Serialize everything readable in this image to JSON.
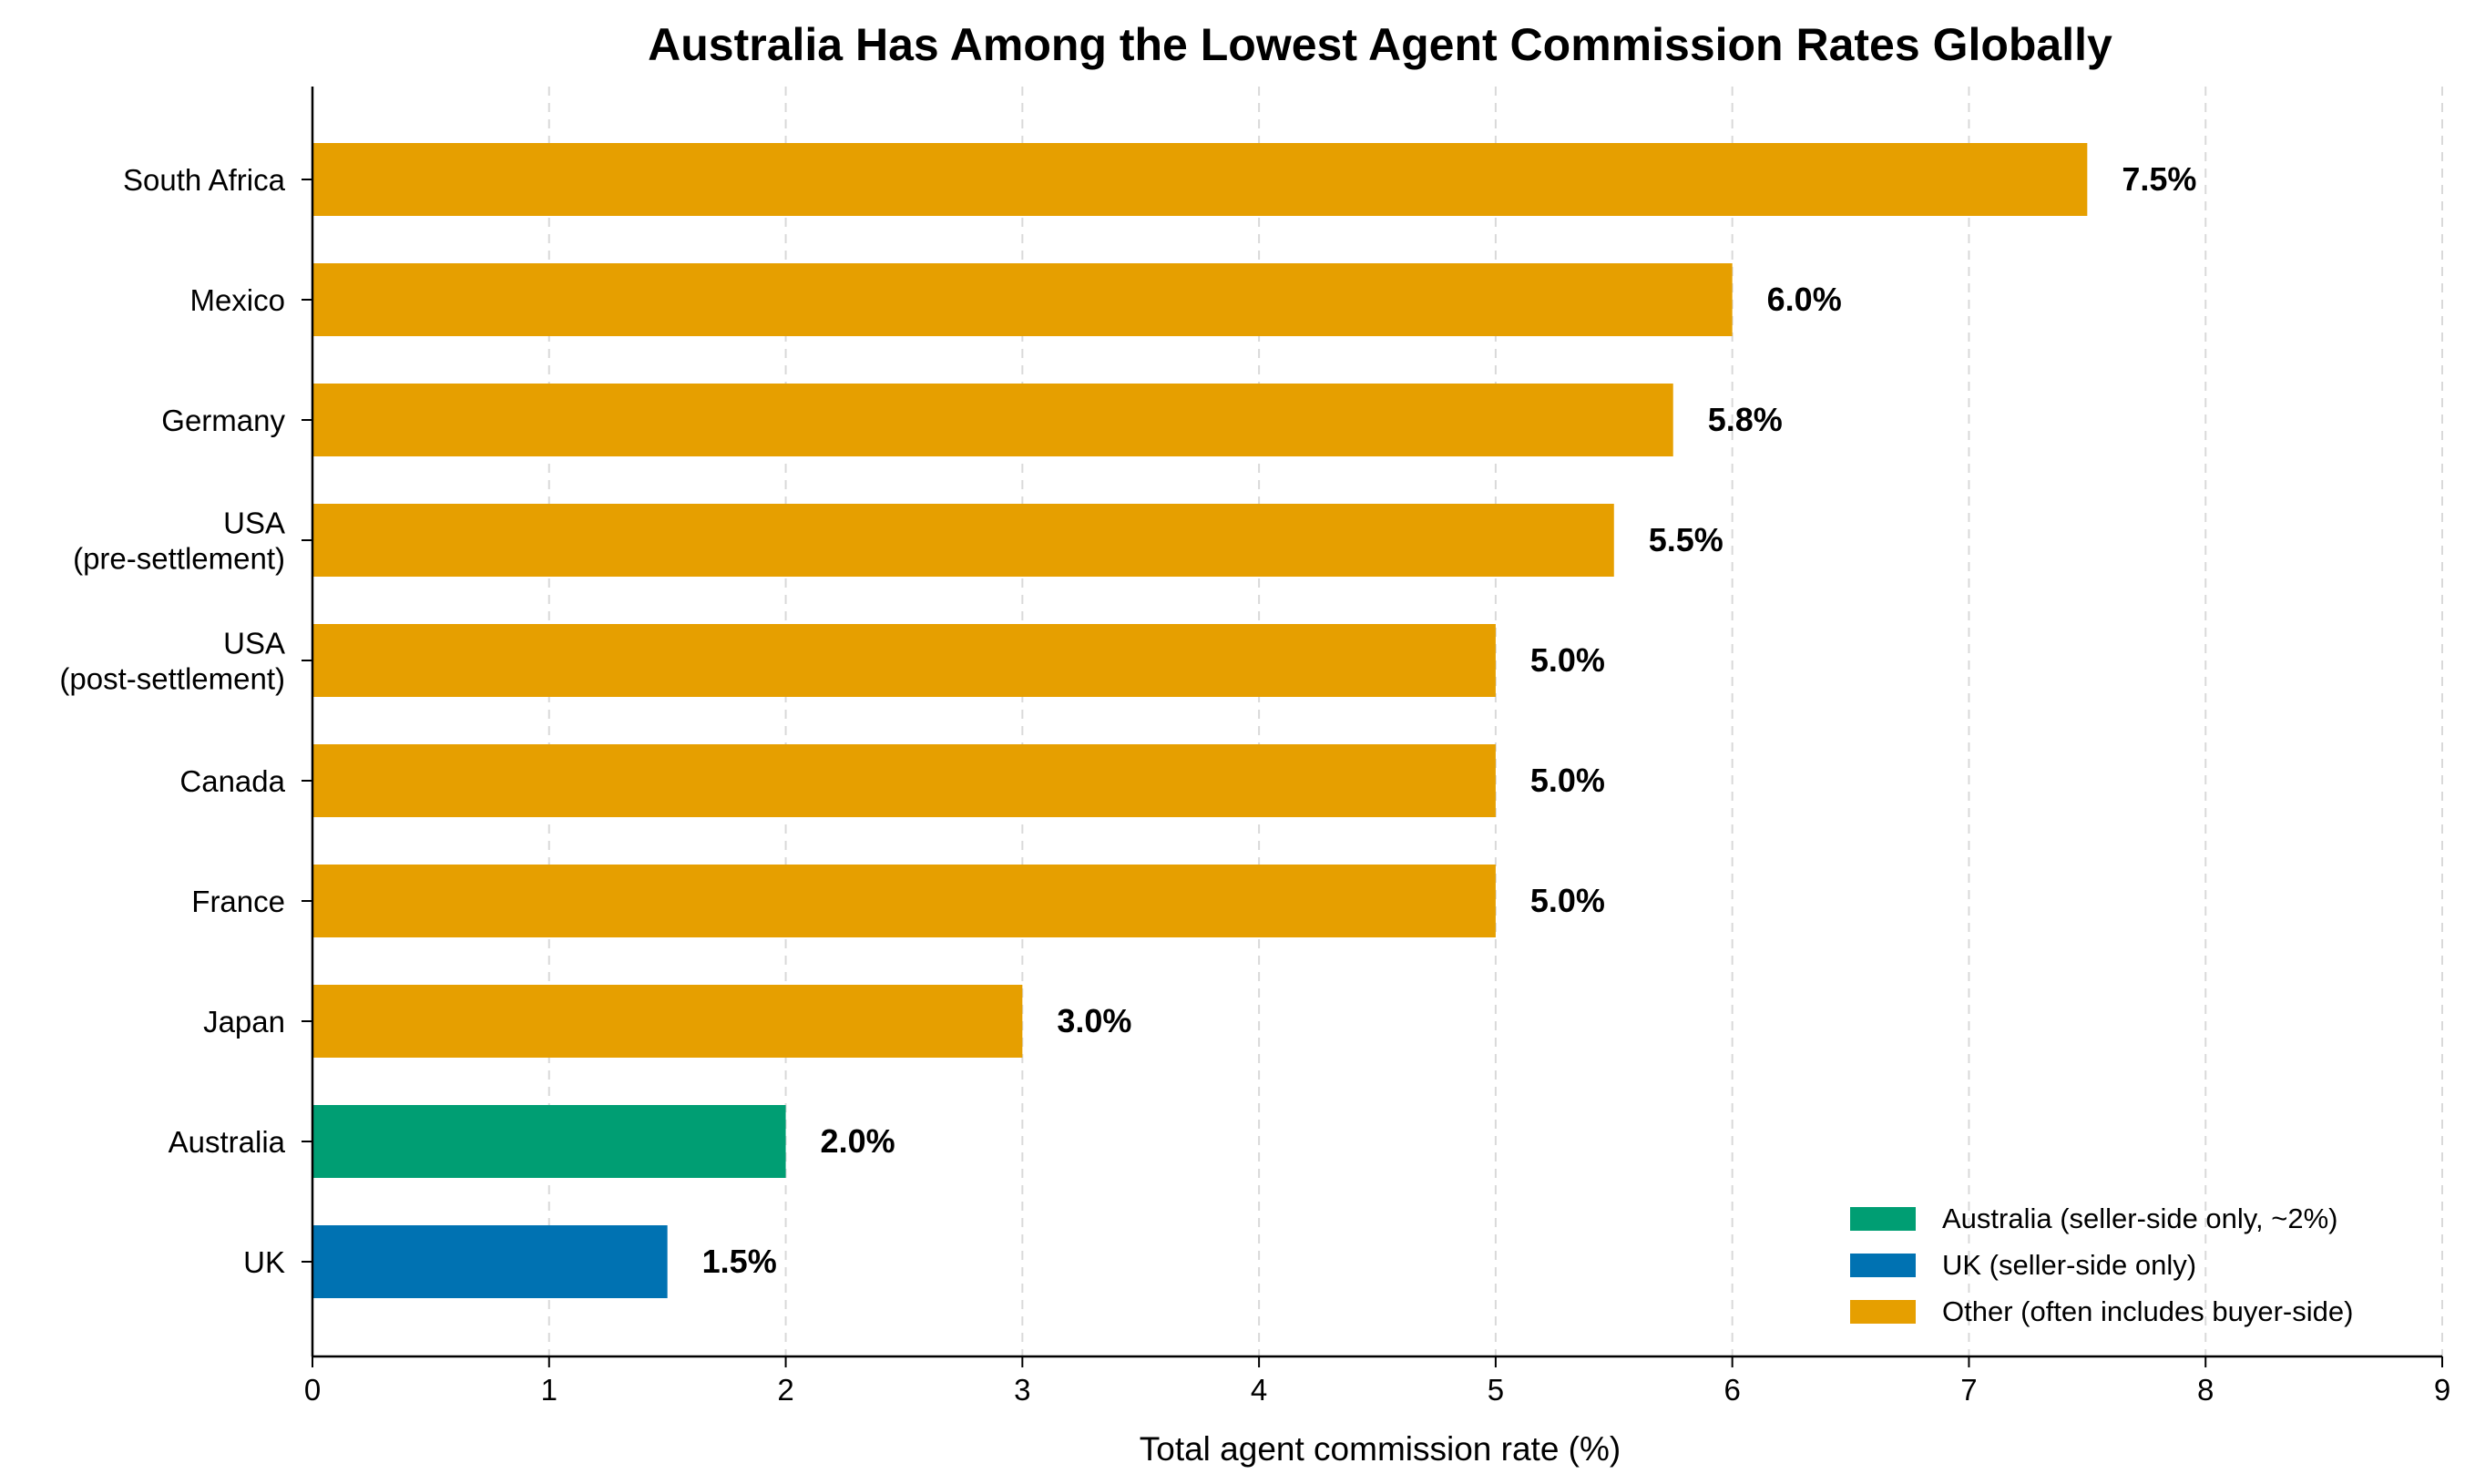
{
  "chart_data": {
    "type": "bar",
    "orientation": "horizontal",
    "title": "Australia Has Among the Lowest Agent Commission Rates Globally",
    "xlabel": "Total agent commission rate (%)",
    "ylabel": "",
    "xlim": [
      0,
      9
    ],
    "xticks": [
      "0",
      "1",
      "2",
      "3",
      "4",
      "5",
      "6",
      "7",
      "8",
      "9"
    ],
    "grid": "vertical dashed",
    "legend_position": "bottom-right",
    "bars": [
      {
        "label": [
          "South Africa"
        ],
        "value": 7.5,
        "value_label": "7.5%",
        "group": "other"
      },
      {
        "label": [
          "Mexico"
        ],
        "value": 6.0,
        "value_label": "6.0%",
        "group": "other"
      },
      {
        "label": [
          "Germany"
        ],
        "value": 5.75,
        "value_label": "5.8%",
        "group": "other"
      },
      {
        "label": [
          "USA",
          "(pre-settlement)"
        ],
        "value": 5.5,
        "value_label": "5.5%",
        "group": "other"
      },
      {
        "label": [
          "USA",
          "(post-settlement)"
        ],
        "value": 5.0,
        "value_label": "5.0%",
        "group": "other"
      },
      {
        "label": [
          "Canada"
        ],
        "value": 5.0,
        "value_label": "5.0%",
        "group": "other"
      },
      {
        "label": [
          "France"
        ],
        "value": 5.0,
        "value_label": "5.0%",
        "group": "other"
      },
      {
        "label": [
          "Japan"
        ],
        "value": 3.0,
        "value_label": "3.0%",
        "group": "other"
      },
      {
        "label": [
          "Australia"
        ],
        "value": 2.0,
        "value_label": "2.0%",
        "group": "australia"
      },
      {
        "label": [
          "UK"
        ],
        "value": 1.5,
        "value_label": "1.5%",
        "group": "uk"
      }
    ],
    "legend": [
      {
        "group": "australia",
        "label": "Australia (seller-side only, ~2%)",
        "color": "#009E73"
      },
      {
        "group": "uk",
        "label": "UK (seller-side only)",
        "color": "#0072B2"
      },
      {
        "group": "other",
        "label": "Other (often includes buyer-side)",
        "color": "#E69F00"
      }
    ]
  }
}
